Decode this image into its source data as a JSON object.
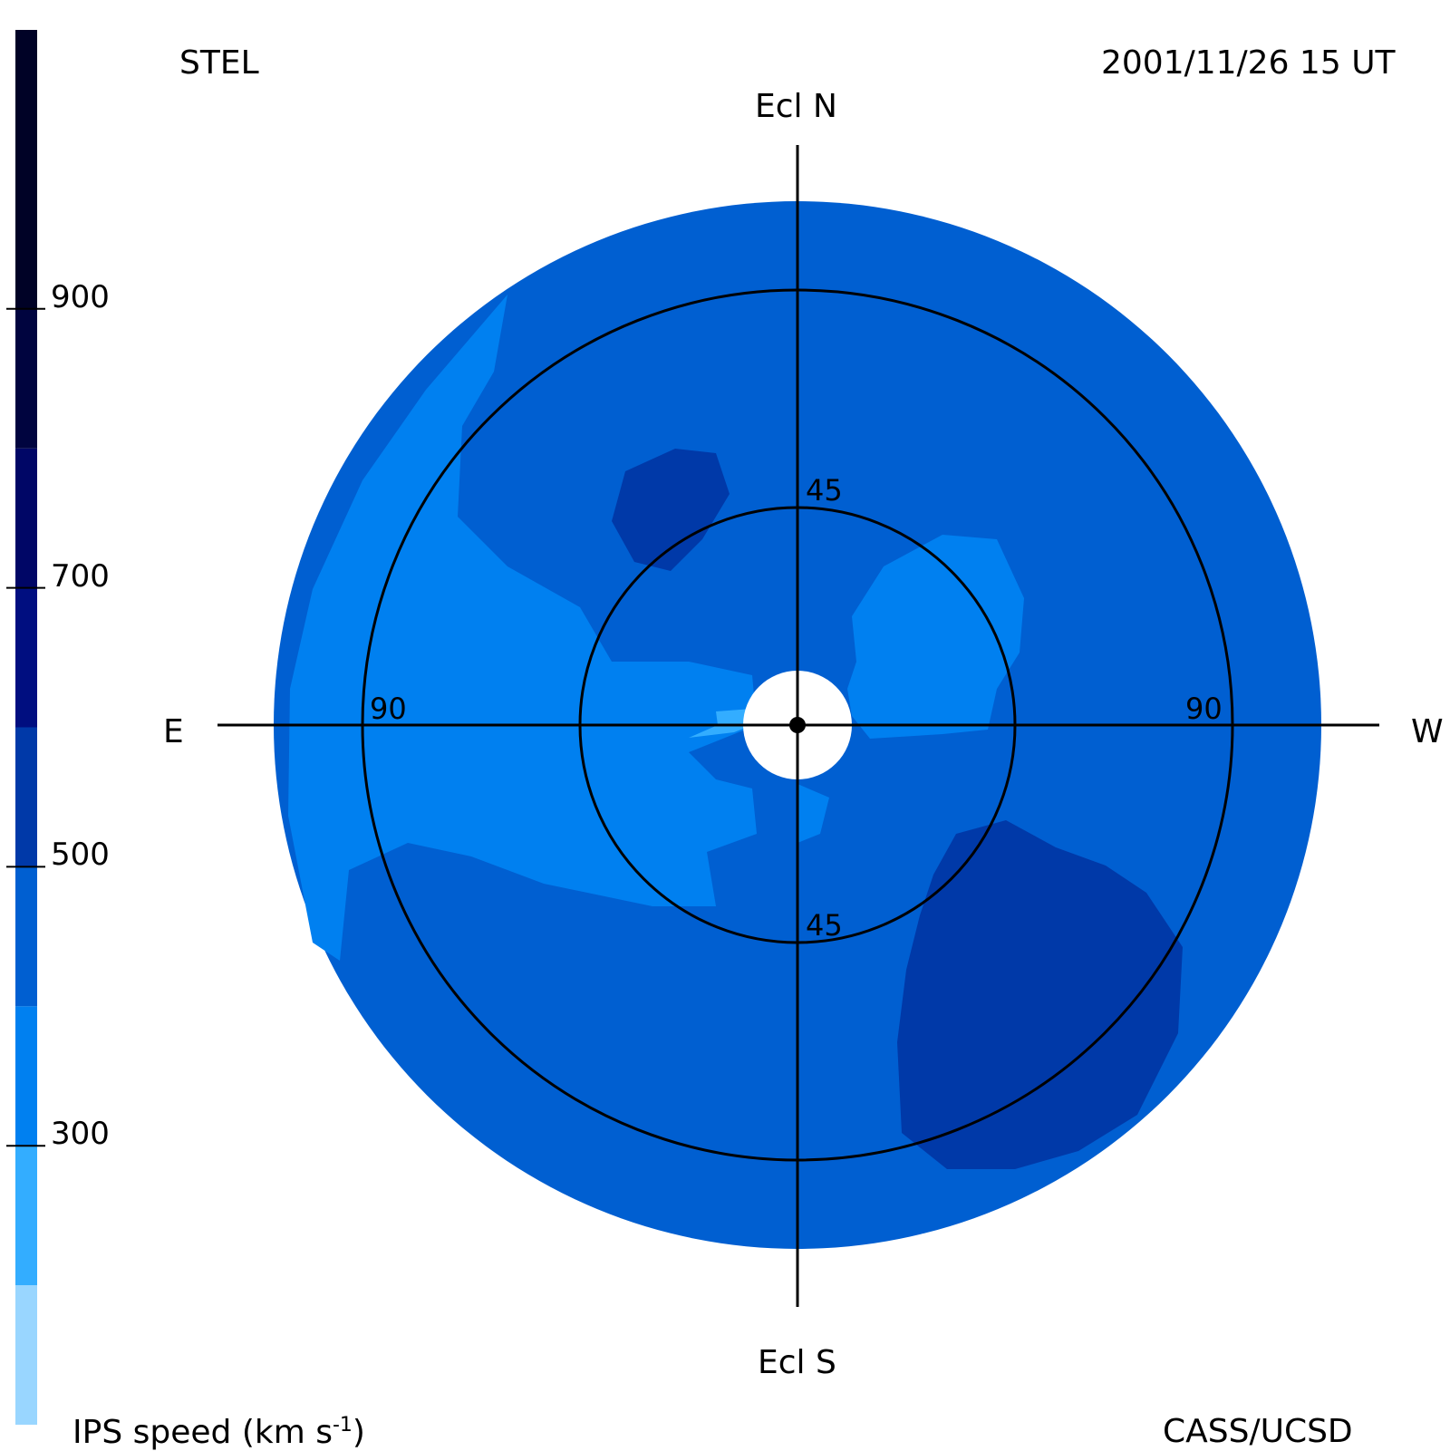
{
  "header": {
    "left": "STEL",
    "right": "2001/11/26 15 UT"
  },
  "footer": {
    "left": "IPS speed (km s",
    "left_sup": "-1",
    "left_end": ")",
    "right": "CASS/UCSD"
  },
  "axes": {
    "north": "Ecl N",
    "south": "Ecl S",
    "east": "E",
    "west": "W"
  },
  "rings": {
    "inner_north": "45",
    "inner_south": "45",
    "outer_east": "90",
    "outer_west": "90"
  },
  "colorbar": {
    "min": 100,
    "max": 1100,
    "ticks": [
      "900",
      "700",
      "500",
      "300"
    ],
    "tick_values": [
      900,
      700,
      500,
      300
    ],
    "bands": [
      {
        "from": 100,
        "to": 200,
        "color": "#99d6ff"
      },
      {
        "from": 200,
        "to": 300,
        "color": "#33adff"
      },
      {
        "from": 300,
        "to": 400,
        "color": "#0080f0"
      },
      {
        "from": 400,
        "to": 500,
        "color": "#005fd1"
      },
      {
        "from": 500,
        "to": 600,
        "color": "#0039a8"
      },
      {
        "from": 600,
        "to": 700,
        "color": "#000e80"
      },
      {
        "from": 700,
        "to": 800,
        "color": "#000666"
      },
      {
        "from": 800,
        "to": 900,
        "color": "#00043f"
      },
      {
        "from": 900,
        "to": 1100,
        "color": "#000226"
      }
    ]
  },
  "colors": {
    "slow": "#0080f0",
    "mid": "#005fd1",
    "fast": "#0039a8",
    "very_slow": "#33adff"
  }
}
